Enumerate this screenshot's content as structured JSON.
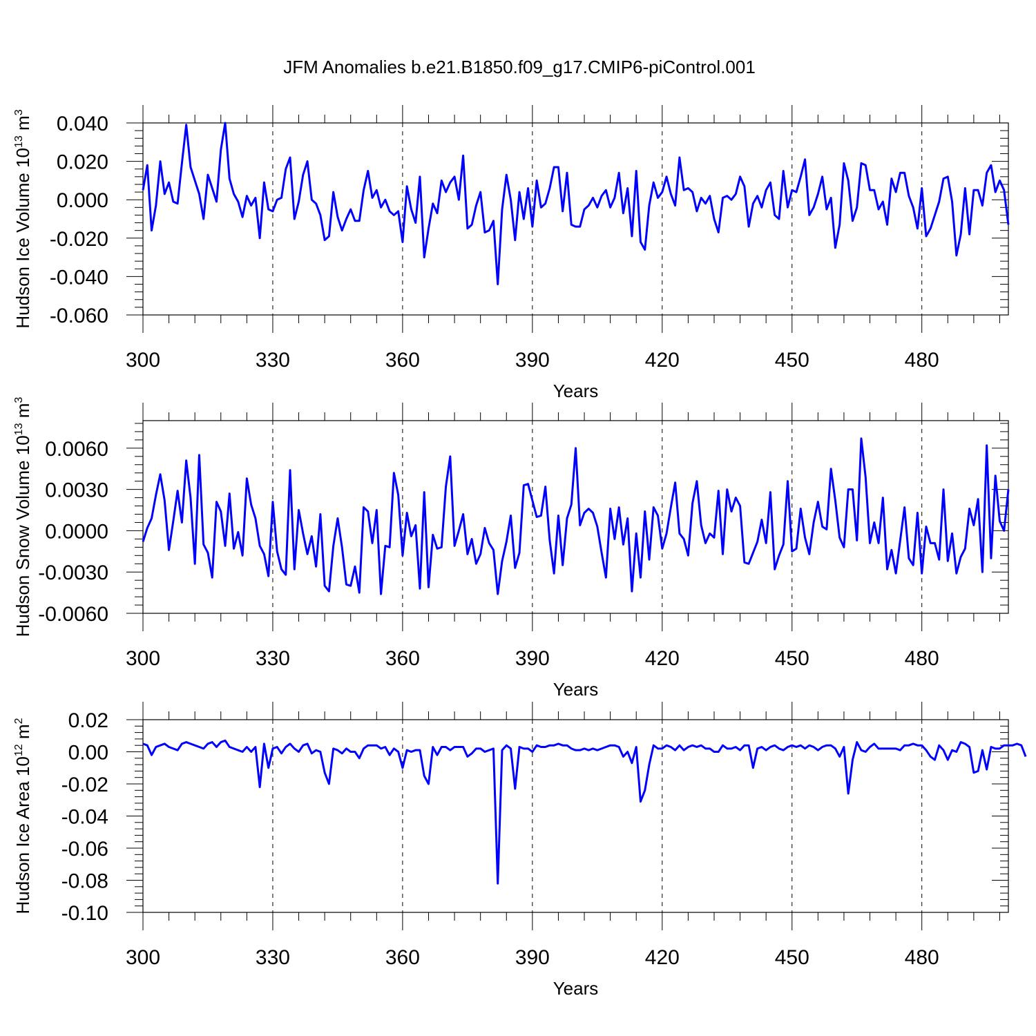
{
  "figure_title": "JFM Anomalies b.e21.B1850.f09_g17.CMIP6-piControl.001",
  "line_color": "#0000ff",
  "chart_data": [
    {
      "type": "line",
      "ylabel": "Hudson Ice Volume 10",
      "ylabel_exp": "13",
      "ylabel_unit": " m",
      "ylabel_unit_exp": "3",
      "xlabel": "Years",
      "xlim": [
        300,
        500
      ],
      "ylim": [
        -0.06,
        0.04
      ],
      "xticks": [
        300,
        330,
        360,
        390,
        420,
        450,
        480
      ],
      "yticks": [
        -0.06,
        -0.04,
        -0.02,
        0.0,
        0.02,
        0.04
      ],
      "ytick_labels": [
        "-0.060",
        "-0.040",
        "-0.020",
        "0.000",
        "0.020",
        "0.040"
      ],
      "grid": "x-dashed",
      "series": [
        {
          "x0": 300,
          "values": [
            0.005,
            0.018,
            -0.016,
            -0.003,
            0.02,
            0.003,
            0.009,
            -0.001,
            -0.002,
            0.019,
            0.039,
            0.017,
            0.01,
            0.003,
            -0.01,
            0.013,
            0.006,
            -0.001,
            0.026,
            0.04,
            0.011,
            0.003,
            -0.001,
            -0.009,
            0.002,
            -0.003,
            0.001,
            -0.02,
            0.009,
            -0.005,
            -0.006,
            0.0,
            0.001,
            0.016,
            0.022,
            -0.01,
            -0.001,
            0.013,
            0.02,
            0.0,
            -0.002,
            -0.008,
            -0.021,
            -0.019,
            0.004,
            -0.009,
            -0.016,
            -0.01,
            -0.005,
            -0.011,
            -0.011,
            0.005,
            0.015,
            0.001,
            0.005,
            -0.004,
            0.0,
            -0.006,
            -0.008,
            -0.006,
            -0.022,
            0.007,
            -0.005,
            -0.012,
            0.012,
            -0.03,
            -0.015,
            -0.002,
            -0.007,
            0.01,
            0.004,
            0.009,
            0.012,
            0.0,
            0.023,
            -0.015,
            -0.013,
            -0.003,
            0.004,
            -0.017,
            -0.016,
            -0.011,
            -0.044,
            -0.005,
            0.013,
            0.0,
            -0.021,
            0.004,
            -0.01,
            0.006,
            -0.014,
            0.01,
            -0.004,
            -0.002,
            0.006,
            0.017,
            0.017,
            -0.006,
            0.014,
            -0.013,
            -0.014,
            -0.014,
            -0.005,
            -0.003,
            0.001,
            -0.004,
            0.002,
            0.005,
            -0.004,
            0.001,
            0.014,
            -0.007,
            0.006,
            -0.019,
            0.015,
            -0.022,
            -0.026,
            -0.003,
            0.009,
            0.001,
            0.004,
            0.012,
            0.003,
            -0.003,
            0.022,
            0.005,
            0.006,
            0.004,
            -0.006,
            0.001,
            -0.002,
            0.002,
            -0.01,
            -0.017,
            0.001,
            0.002,
            0.0,
            0.003,
            0.012,
            0.007,
            -0.014,
            -0.002,
            0.002,
            -0.004,
            0.005,
            0.009,
            -0.008,
            -0.01,
            0.015,
            -0.004,
            0.005,
            0.004,
            0.012,
            0.021,
            -0.008,
            -0.004,
            0.003,
            0.012,
            -0.005,
            0.001,
            -0.025,
            -0.013,
            0.019,
            0.01,
            -0.011,
            -0.004,
            0.019,
            0.018,
            0.005,
            0.005,
            -0.005,
            -0.001,
            -0.013,
            0.011,
            0.004,
            0.014,
            0.014,
            0.002,
            -0.004,
            -0.015,
            0.006,
            -0.019,
            -0.015,
            -0.008,
            -0.001,
            0.011,
            0.012,
            -0.001,
            -0.029,
            -0.018,
            0.006,
            -0.018,
            0.005,
            0.005,
            -0.003,
            0.014,
            0.018,
            0.004,
            0.01,
            0.005,
            -0.013
          ]
        }
      ]
    },
    {
      "type": "line",
      "ylabel": "Hudson Snow Volume 10",
      "ylabel_exp": "13",
      "ylabel_unit": " m",
      "ylabel_unit_exp": "3",
      "xlabel": "Years",
      "xlim": [
        300,
        500
      ],
      "ylim": [
        -0.006,
        0.008
      ],
      "xticks": [
        300,
        330,
        360,
        390,
        420,
        450,
        480
      ],
      "yticks": [
        -0.006,
        -0.003,
        0.0,
        0.003,
        0.006
      ],
      "ytick_labels": [
        "-0.0060",
        "-0.0030",
        "0.0000",
        "0.0030",
        "0.0060"
      ],
      "grid": "x-dashed",
      "series": [
        {
          "x0": 300,
          "values": [
            -0.0008,
            0.0002,
            0.0009,
            0.0026,
            0.0041,
            0.0022,
            -0.0014,
            0.0007,
            0.0029,
            0.0006,
            0.0051,
            0.0024,
            -0.0024,
            0.0055,
            -0.001,
            -0.0016,
            -0.0034,
            0.0021,
            0.0014,
            -0.0011,
            0.0027,
            -0.0013,
            -0.0001,
            -0.0018,
            0.0038,
            0.0019,
            0.0009,
            -0.0011,
            -0.0017,
            -0.0033,
            0.0021,
            -0.0015,
            -0.0028,
            -0.0032,
            0.0044,
            -0.0028,
            0.0015,
            -0.0002,
            -0.0017,
            -0.0004,
            -0.0026,
            0.0012,
            -0.004,
            -0.0044,
            -0.0011,
            0.0009,
            -0.0012,
            -0.0039,
            -0.004,
            -0.0026,
            -0.0045,
            0.0017,
            0.0014,
            -0.0009,
            0.0015,
            -0.0046,
            -0.0011,
            -0.0012,
            0.0042,
            0.0026,
            -0.0018,
            0.0013,
            -0.0004,
            0.0004,
            -0.0042,
            0.0028,
            -0.0041,
            -0.0003,
            -0.0013,
            -0.0012,
            0.0032,
            0.0054,
            -0.0011,
            0.0,
            0.0012,
            -0.0017,
            -0.0006,
            -0.0024,
            -0.0017,
            0.0002,
            -0.0009,
            -0.0014,
            -0.0046,
            -0.0022,
            -0.0008,
            0.0011,
            -0.0027,
            -0.0016,
            0.0033,
            0.0034,
            0.0022,
            0.001,
            0.0011,
            0.0032,
            -0.0007,
            -0.0031,
            0.0011,
            -0.0025,
            0.0009,
            0.0019,
            0.006,
            0.0004,
            0.0013,
            0.0016,
            0.0013,
            0.0003,
            -0.0016,
            -0.0034,
            0.0016,
            -0.0006,
            0.0017,
            -0.001,
            0.0009,
            -0.0044,
            -0.0002,
            -0.0034,
            0.0014,
            -0.0021,
            0.0017,
            0.0011,
            -0.0013,
            -0.0002,
            0.0017,
            0.0035,
            -0.0002,
            -0.0006,
            -0.0018,
            0.002,
            0.0036,
            0.0004,
            -0.0009,
            -0.0002,
            -0.0005,
            0.0029,
            -0.0017,
            0.003,
            0.0014,
            0.0024,
            0.0018,
            -0.0023,
            -0.0024,
            -0.0016,
            -0.0008,
            0.0008,
            -0.0009,
            0.0028,
            -0.0028,
            -0.0018,
            -0.001,
            0.0036,
            -0.0015,
            -0.0013,
            0.0016,
            -0.0005,
            -0.0017,
            0.0006,
            0.0021,
            0.0003,
            0.0001,
            0.0045,
            0.0022,
            -0.0005,
            -0.0012,
            0.003,
            0.003,
            -0.0007,
            0.0067,
            0.0039,
            -0.0009,
            0.0006,
            -0.0009,
            0.0024,
            -0.0028,
            -0.0014,
            -0.0031,
            -0.0007,
            0.0017,
            -0.002,
            -0.0025,
            0.0013,
            -0.0031,
            0.0003,
            -0.0009,
            -0.0009,
            -0.0021,
            0.003,
            -0.0022,
            -0.0002,
            -0.0031,
            -0.0019,
            -0.0013,
            0.0016,
            0.0004,
            0.0023,
            -0.003,
            0.0062,
            -0.002,
            0.004,
            0.0007,
            0.0,
            0.003
          ]
        }
      ]
    },
    {
      "type": "line",
      "ylabel": "Hudson Ice Area 10",
      "ylabel_exp": "12",
      "ylabel_unit": " m",
      "ylabel_unit_exp": "2",
      "xlabel": "Years",
      "xlim": [
        300,
        500
      ],
      "ylim": [
        -0.1,
        0.02
      ],
      "xticks": [
        300,
        330,
        360,
        390,
        420,
        450,
        480
      ],
      "yticks": [
        -0.1,
        -0.08,
        -0.06,
        -0.04,
        -0.02,
        0.0,
        0.02
      ],
      "ytick_labels": [
        "-0.10",
        "-0.08",
        "-0.06",
        "-0.04",
        "-0.02",
        "0.00",
        "0.02"
      ],
      "grid": "x-dashed",
      "series": [
        {
          "x0": 300,
          "values": [
            0.005,
            0.004,
            -0.002,
            0.003,
            0.004,
            0.005,
            0.003,
            0.002,
            0.001,
            0.005,
            0.006,
            0.005,
            0.004,
            0.003,
            0.002,
            0.005,
            0.006,
            0.003,
            0.006,
            0.007,
            0.003,
            0.002,
            0.001,
            0.0,
            0.003,
            0.0,
            0.003,
            -0.022,
            0.005,
            -0.01,
            0.002,
            0.003,
            -0.001,
            0.003,
            0.005,
            0.002,
            0.0,
            0.004,
            0.005,
            -0.001,
            0.001,
            0.0,
            -0.013,
            -0.02,
            0.002,
            0.001,
            -0.001,
            0.002,
            0.0,
            0.0,
            -0.004,
            0.002,
            0.004,
            0.004,
            0.004,
            0.002,
            0.003,
            -0.002,
            0.002,
            0.0,
            -0.01,
            0.001,
            0.0,
            0.001,
            0.001,
            -0.015,
            -0.02,
            0.003,
            -0.002,
            0.003,
            0.003,
            0.001,
            0.003,
            0.003,
            0.003,
            -0.003,
            -0.001,
            0.002,
            0.002,
            0.0,
            0.001,
            0.002,
            -0.082,
            0.001,
            0.004,
            0.002,
            -0.023,
            0.003,
            0.002,
            0.002,
            0.0,
            0.004,
            0.003,
            0.003,
            0.004,
            0.004,
            0.005,
            0.004,
            0.004,
            0.002,
            0.001,
            0.001,
            0.002,
            0.001,
            0.002,
            0.001,
            0.002,
            0.003,
            0.004,
            0.004,
            0.003,
            -0.003,
            0.0,
            -0.007,
            0.003,
            -0.031,
            -0.024,
            -0.008,
            0.004,
            0.002,
            0.002,
            0.004,
            0.003,
            0.001,
            0.004,
            0.001,
            0.003,
            0.004,
            0.003,
            0.004,
            0.002,
            0.002,
            0.0,
            0.0,
            0.004,
            0.002,
            0.002,
            0.003,
            0.001,
            0.004,
            0.004,
            -0.01,
            0.002,
            0.003,
            0.001,
            0.003,
            0.004,
            0.002,
            0.001,
            0.003,
            0.004,
            0.003,
            0.004,
            0.002,
            0.004,
            0.003,
            0.001,
            0.003,
            0.004,
            0.004,
            0.002,
            -0.003,
            0.003,
            -0.026,
            -0.005,
            0.006,
            0.001,
            0.0,
            0.003,
            0.005,
            0.002,
            0.002,
            0.002,
            0.002,
            0.002,
            0.001,
            0.004,
            0.004,
            0.005,
            0.004,
            0.004,
            0.001,
            -0.003,
            -0.005,
            0.004,
            0.001,
            -0.005,
            0.001,
            0.0,
            0.006,
            0.005,
            0.003,
            -0.013,
            -0.012,
            0.001,
            -0.011,
            0.003,
            0.002,
            0.002,
            0.004,
            0.004,
            0.004,
            0.005,
            0.004,
            -0.003
          ]
        }
      ]
    }
  ]
}
